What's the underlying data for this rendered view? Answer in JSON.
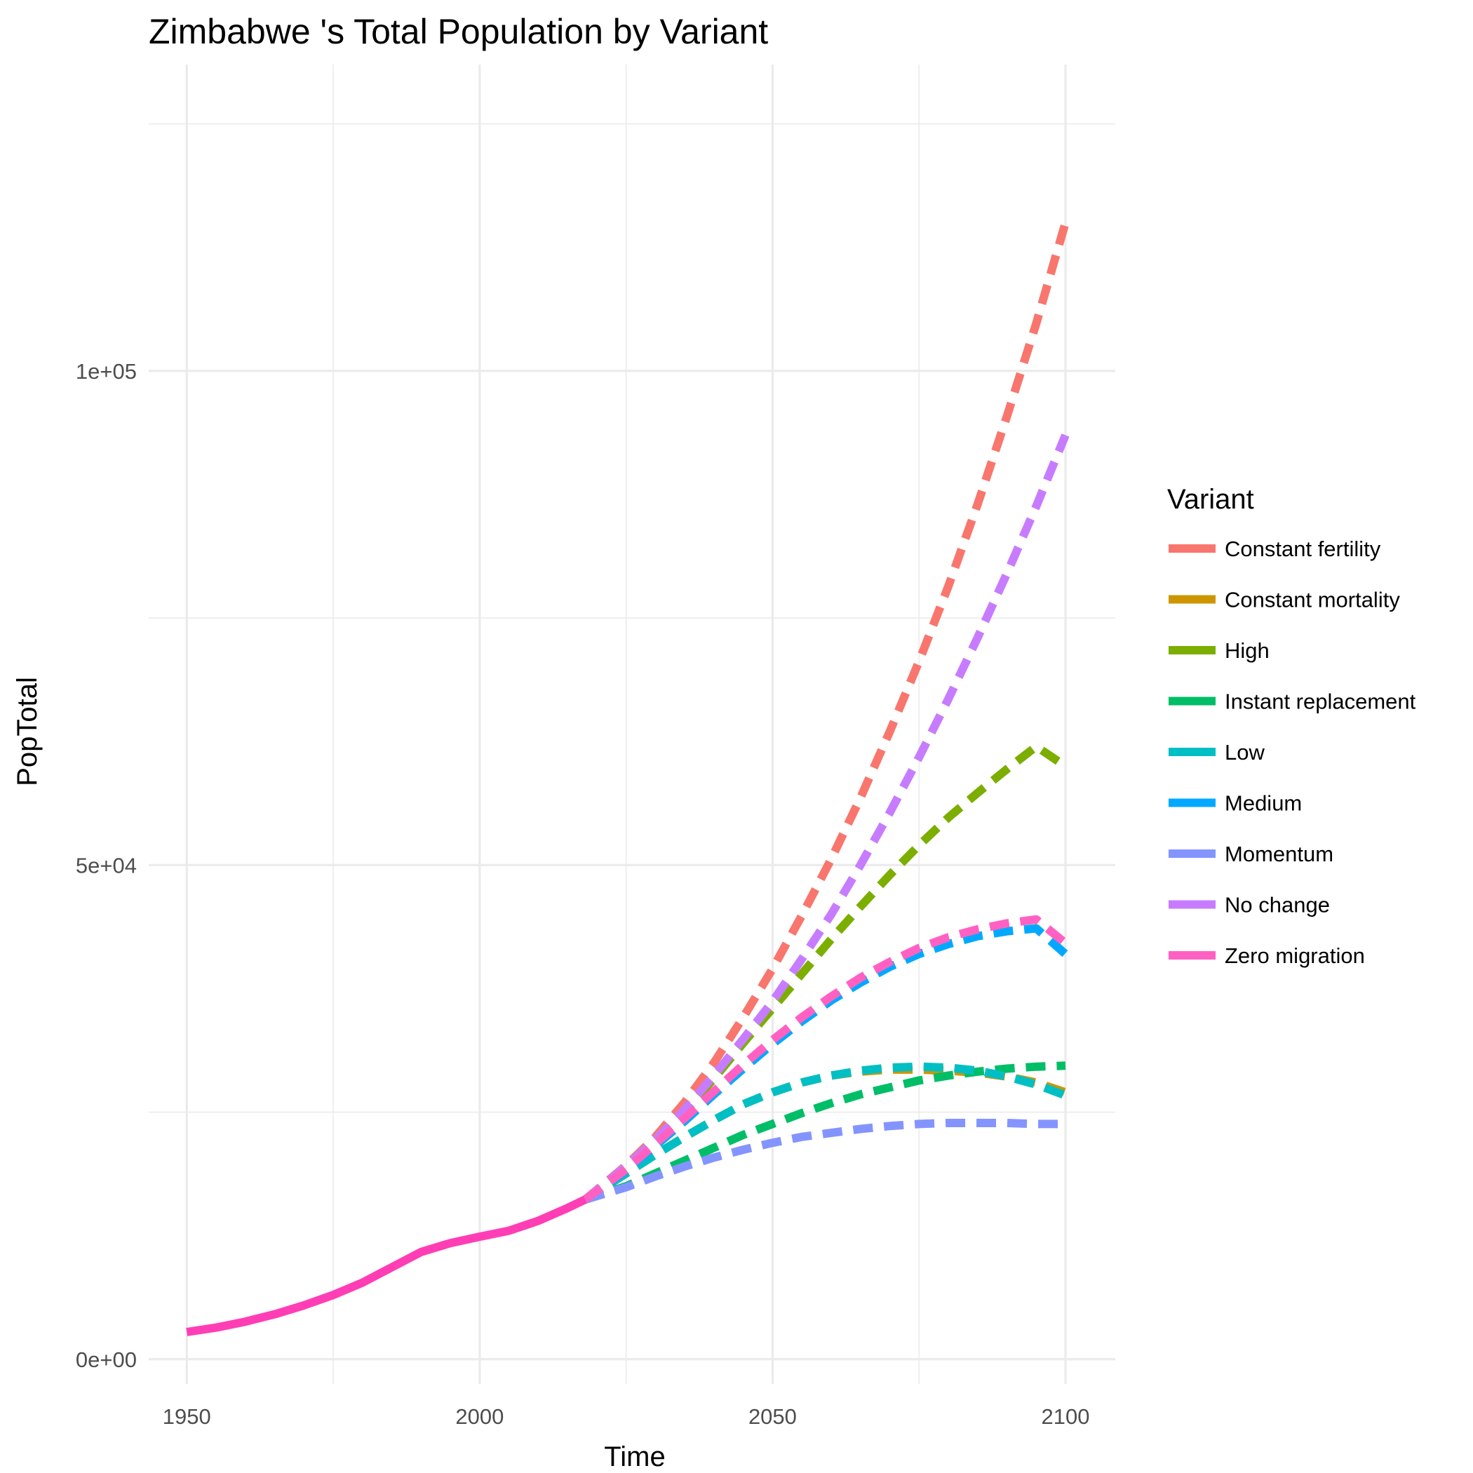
{
  "chart_data": {
    "type": "line",
    "title": "Zimbabwe 's Total Population by Variant",
    "xlabel": "Time",
    "ylabel": "PopTotal",
    "xlim": [
      1943.5,
      2108.5
    ],
    "ylim": [
      -2500,
      131000
    ],
    "x_ticks": [
      1950,
      2000,
      2050,
      2100
    ],
    "x_tick_labels": [
      "1950",
      "2000",
      "2050",
      "2100"
    ],
    "x_minor_ticks": [
      1975,
      2025,
      2075
    ],
    "y_ticks": [
      0,
      50000,
      100000
    ],
    "y_tick_labels": [
      "0e+00",
      "5e+04",
      "1e+05"
    ],
    "y_minor_ticks": [
      25000,
      75000,
      125000
    ],
    "grid": true,
    "legend": {
      "title": "Variant",
      "position": "right"
    },
    "historical": {
      "name": "Zero migration",
      "color": "#FF3EB5",
      "x": [
        1950,
        1955,
        1960,
        1965,
        1970,
        1975,
        1980,
        1985,
        1990,
        1995,
        2000,
        2005,
        2010,
        2015,
        2018
      ],
      "y": [
        2750,
        3200,
        3800,
        4550,
        5450,
        6500,
        7750,
        9300,
        10850,
        11750,
        12400,
        13000,
        14000,
        15300,
        16150
      ]
    },
    "series": [
      {
        "name": "Constant fertility",
        "color": "#F8766D",
        "x": [
          2018,
          2025,
          2030,
          2035,
          2040,
          2045,
          2050,
          2055,
          2060,
          2065,
          2070,
          2075,
          2080,
          2085,
          2090,
          2095,
          2100
        ],
        "y": [
          16150,
          19600,
          22500,
          26000,
          30000,
          34600,
          39500,
          44900,
          50600,
          56800,
          63500,
          70600,
          78200,
          86500,
          95400,
          104800,
          115000
        ]
      },
      {
        "name": "Constant mortality",
        "color": "#CD9600",
        "x": [
          2018,
          2025,
          2030,
          2035,
          2040,
          2045,
          2050,
          2055,
          2060,
          2065,
          2070,
          2075,
          2080,
          2085,
          2090,
          2095,
          2100
        ],
        "y": [
          16150,
          18800,
          20700,
          22500,
          24200,
          25800,
          27000,
          28000,
          28700,
          29100,
          29300,
          29300,
          29200,
          29000,
          28600,
          28000,
          27000
        ]
      },
      {
        "name": "High",
        "color": "#7CAE00",
        "x": [
          2018,
          2025,
          2030,
          2035,
          2040,
          2045,
          2050,
          2055,
          2060,
          2065,
          2070,
          2075,
          2080,
          2085,
          2090,
          2095,
          2100
        ],
        "y": [
          16150,
          19400,
          22000,
          25000,
          28400,
          32000,
          35500,
          39000,
          42500,
          45800,
          49000,
          52000,
          54800,
          57300,
          59700,
          62000,
          60000
        ]
      },
      {
        "name": "Instant replacement",
        "color": "#00BE67",
        "x": [
          2018,
          2025,
          2030,
          2035,
          2040,
          2045,
          2050,
          2055,
          2060,
          2065,
          2070,
          2075,
          2080,
          2085,
          2090,
          2095,
          2100
        ],
        "y": [
          16150,
          17500,
          18800,
          20100,
          21400,
          22700,
          23800,
          24900,
          25900,
          26800,
          27500,
          28200,
          28700,
          29100,
          29400,
          29600,
          29700
        ]
      },
      {
        "name": "Low",
        "color": "#00BFC4",
        "x": [
          2018,
          2025,
          2030,
          2035,
          2040,
          2045,
          2050,
          2055,
          2060,
          2065,
          2070,
          2075,
          2080,
          2085,
          2090,
          2095,
          2100
        ],
        "y": [
          16150,
          18800,
          20700,
          22500,
          24200,
          25800,
          27000,
          28000,
          28700,
          29200,
          29500,
          29600,
          29500,
          29200,
          28600,
          27800,
          26700
        ]
      },
      {
        "name": "Medium",
        "color": "#00A9FF",
        "x": [
          2018,
          2025,
          2030,
          2035,
          2040,
          2045,
          2050,
          2055,
          2060,
          2065,
          2070,
          2075,
          2080,
          2085,
          2090,
          2095,
          2100
        ],
        "y": [
          16150,
          19100,
          21600,
          24100,
          26800,
          29400,
          31900,
          34200,
          36300,
          38100,
          39700,
          41000,
          42000,
          42800,
          43300,
          43600,
          41000
        ]
      },
      {
        "name": "Momentum",
        "color": "#8494FF",
        "x": [
          2018,
          2025,
          2030,
          2035,
          2040,
          2045,
          2050,
          2055,
          2060,
          2065,
          2070,
          2075,
          2080,
          2085,
          2090,
          2095,
          2100
        ],
        "y": [
          16150,
          17400,
          18500,
          19500,
          20400,
          21200,
          21900,
          22500,
          22900,
          23300,
          23600,
          23800,
          23900,
          23900,
          23900,
          23800,
          23800
        ]
      },
      {
        "name": "No change",
        "color": "#C77CFF",
        "x": [
          2018,
          2025,
          2030,
          2035,
          2040,
          2045,
          2050,
          2055,
          2060,
          2065,
          2070,
          2075,
          2080,
          2085,
          2090,
          2095,
          2100
        ],
        "y": [
          16150,
          19500,
          22200,
          25300,
          28700,
          32400,
          36200,
          40500,
          45000,
          50000,
          55300,
          60900,
          66800,
          73000,
          79500,
          86300,
          93500
        ]
      },
      {
        "name": "Zero migration",
        "color": "#FF61C3",
        "x": [
          2018,
          2025,
          2030,
          2035,
          2040,
          2045,
          2050,
          2055,
          2060,
          2065,
          2070,
          2075,
          2080,
          2085,
          2090,
          2095,
          2100
        ],
        "y": [
          16150,
          19200,
          21800,
          24400,
          27100,
          29800,
          32300,
          34600,
          36700,
          38600,
          40200,
          41600,
          42700,
          43500,
          44100,
          44500,
          42100
        ]
      }
    ]
  }
}
